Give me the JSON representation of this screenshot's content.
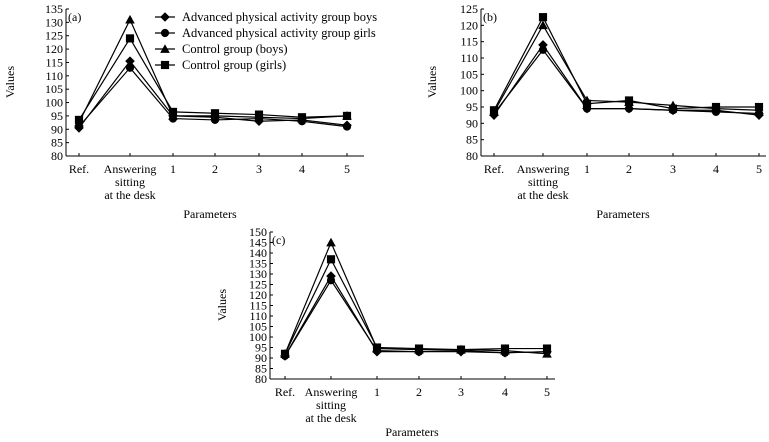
{
  "figure": {
    "legend": [
      {
        "name": "Advanced physical activity group boys",
        "marker": "diamond"
      },
      {
        "name": "Advanced physical activity group girls",
        "marker": "circle"
      },
      {
        "name": "Control group (boys)",
        "marker": "triangle"
      },
      {
        "name": "Control group (girls)",
        "marker": "square"
      }
    ],
    "color": "#000000"
  },
  "chart_data": [
    {
      "type": "line",
      "panel_label": "(a)",
      "categories": [
        "Ref.",
        "Answering sitting at the desk",
        "1",
        "2",
        "3",
        "4",
        "5"
      ],
      "category_lines": [
        [
          "Ref."
        ],
        [
          "Answering",
          "sitting",
          "at the desk"
        ],
        [
          "1"
        ],
        [
          "2"
        ],
        [
          "3"
        ],
        [
          "4"
        ],
        [
          "5"
        ]
      ],
      "xlabel": "Parameters",
      "ylabel": "Values",
      "ylim": [
        80,
        135
      ],
      "ytick_step": 5,
      "grid": false,
      "legend_position": "top-right",
      "series": [
        {
          "name": "Advanced physical activity group boys",
          "marker": "diamond",
          "values": [
            90.5,
            115.5,
            95.0,
            94.5,
            93.0,
            93.5,
            91.5
          ]
        },
        {
          "name": "Advanced physical activity group girls",
          "marker": "circle",
          "values": [
            91.0,
            113.0,
            94.0,
            93.5,
            94.0,
            93.0,
            91.0
          ]
        },
        {
          "name": "Control group (boys)",
          "marker": "triangle",
          "values": [
            92.5,
            131.0,
            95.0,
            95.0,
            94.5,
            94.0,
            95.0
          ]
        },
        {
          "name": "Control group (girls)",
          "marker": "square",
          "values": [
            93.5,
            124.0,
            96.5,
            96.0,
            95.5,
            94.5,
            95.0
          ]
        }
      ]
    },
    {
      "type": "line",
      "panel_label": "(b)",
      "categories": [
        "Ref.",
        "Answering sitting at the desk",
        "1",
        "2",
        "3",
        "4",
        "5"
      ],
      "category_lines": [
        [
          "Ref."
        ],
        [
          "Answering",
          "sitting",
          "at the desk"
        ],
        [
          "1"
        ],
        [
          "2"
        ],
        [
          "3"
        ],
        [
          "4"
        ],
        [
          "5"
        ]
      ],
      "xlabel": "Parameters",
      "ylabel": "Values",
      "ylim": [
        80,
        125
      ],
      "ytick_step": 5,
      "grid": false,
      "series": [
        {
          "name": "Advanced physical activity group boys",
          "marker": "diamond",
          "values": [
            92.5,
            114.0,
            94.5,
            94.5,
            94.0,
            94.0,
            92.5
          ]
        },
        {
          "name": "Advanced physical activity group girls",
          "marker": "circle",
          "values": [
            93.0,
            112.5,
            94.5,
            94.5,
            94.0,
            93.5,
            93.0
          ]
        },
        {
          "name": "Control group (boys)",
          "marker": "triangle",
          "values": [
            93.5,
            120.0,
            97.0,
            96.5,
            95.5,
            94.5,
            94.0
          ]
        },
        {
          "name": "Control group (girls)",
          "marker": "square",
          "values": [
            94.0,
            122.5,
            96.0,
            97.0,
            94.5,
            95.0,
            95.0
          ]
        }
      ]
    },
    {
      "type": "line",
      "panel_label": "(c)",
      "categories": [
        "Ref.",
        "Answering sitting at the desk",
        "1",
        "2",
        "3",
        "4",
        "5"
      ],
      "category_lines": [
        [
          "Ref."
        ],
        [
          "Answering",
          "sitting",
          "at the desk"
        ],
        [
          "1"
        ],
        [
          "2"
        ],
        [
          "3"
        ],
        [
          "4"
        ],
        [
          "5"
        ]
      ],
      "xlabel": "Parameters",
      "ylabel": "Values",
      "ylim": [
        80,
        150
      ],
      "ytick_step": 5,
      "grid": false,
      "series": [
        {
          "name": "Advanced physical activity group boys",
          "marker": "diamond",
          "values": [
            91.0,
            129.0,
            93.0,
            93.0,
            93.0,
            92.5,
            93.0
          ]
        },
        {
          "name": "Advanced physical activity group girls",
          "marker": "circle",
          "values": [
            91.0,
            127.0,
            93.5,
            93.0,
            93.5,
            92.5,
            93.0
          ]
        },
        {
          "name": "Control group (boys)",
          "marker": "triangle",
          "values": [
            92.0,
            145.0,
            94.5,
            94.0,
            94.0,
            93.5,
            92.0
          ]
        },
        {
          "name": "Control group (girls)",
          "marker": "square",
          "values": [
            92.0,
            137.0,
            95.0,
            94.5,
            94.0,
            94.5,
            94.5
          ]
        }
      ]
    }
  ]
}
